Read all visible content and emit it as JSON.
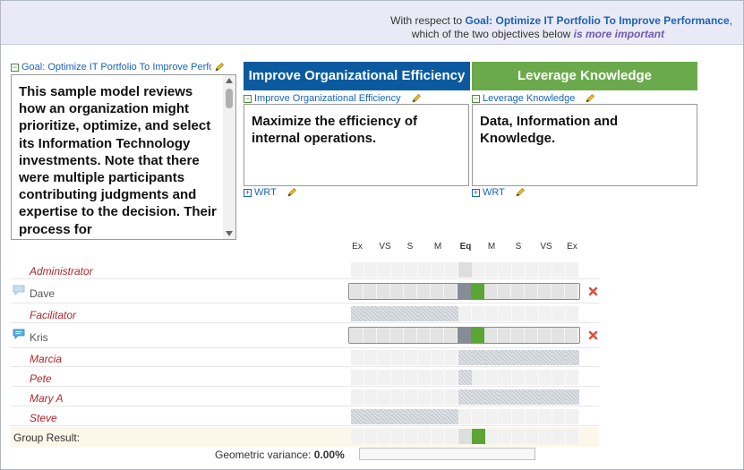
{
  "header": {
    "prefix": "With respect to",
    "goal_link": "Goal: Optimize IT Portfolio To Improve Performance",
    "suffix": ",",
    "line2_prefix": "which of the two objectives below",
    "line2_emphasis": "is more important"
  },
  "goal": {
    "label": "Goal: Optimize IT Portfolio To Improve Perfo",
    "description": "This sample model reviews how an organization might prioritize, optimize, and select its Information Technology investments.  Note that there were multiple participants contributing judgments and expertise to the decision.  Their process for"
  },
  "objectives": {
    "left": {
      "title": "Improve Organizational Efficiency",
      "label": "Improve Organizational Efficiency",
      "description": "Maximize the efficiency of internal operations.",
      "wrt": "WRT",
      "color": "#0b5aa0"
    },
    "right": {
      "title": "Leverage Knowledge",
      "label": "Leverage Knowledge",
      "description": "Data, Information and Knowledge.",
      "wrt": "WRT",
      "color": "#6aaa4c"
    }
  },
  "scale": [
    "Ex",
    "VS",
    "S",
    "M",
    "Eq",
    "M",
    "S",
    "VS",
    "Ex"
  ],
  "participants": [
    {
      "name": "Administrator",
      "kind": "facilitator"
    },
    {
      "name": "Dave",
      "kind": "participant"
    },
    {
      "name": "Facilitator",
      "kind": "facilitator"
    },
    {
      "name": "Kris",
      "kind": "participant"
    },
    {
      "name": "Marcia",
      "kind": "facilitator"
    },
    {
      "name": "Pete",
      "kind": "facilitator"
    },
    {
      "name": "Mary A",
      "kind": "facilitator"
    },
    {
      "name": "Steve",
      "kind": "facilitator"
    }
  ],
  "group_result": {
    "label": "Group Result:"
  },
  "variance": {
    "label": "Geometric variance:",
    "value": "0.00%"
  },
  "icons": {
    "edit": "pencil-icon",
    "remove": "red-x-icon",
    "comment": "comment-bubble-icon"
  }
}
